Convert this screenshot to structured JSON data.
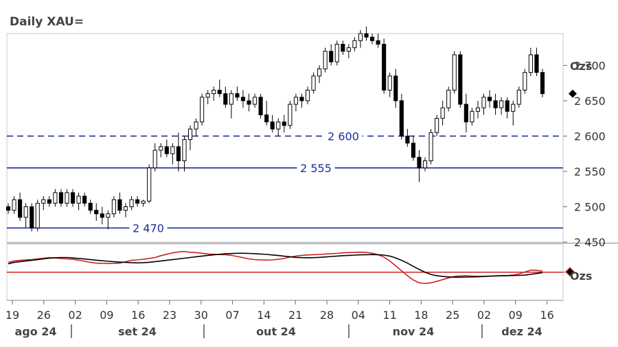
{
  "title": "Daily XAU=",
  "chart_data": {
    "type": "candlestick",
    "title": "Daily XAU=",
    "price_panel": {
      "unit_label": "Ozs",
      "ylim": [
        2450,
        2745
      ],
      "yticks": [
        "2 450",
        "2 500",
        "2 550",
        "2 600",
        "2 650",
        "2 700"
      ],
      "ytick_values": [
        2450,
        2500,
        2550,
        2600,
        2650,
        2700
      ],
      "last_price": 2660,
      "levels": [
        {
          "value": 2600,
          "label": "2 600",
          "style": "dashed",
          "color": "#1a2e9c"
        },
        {
          "value": 2555,
          "label": "2 555",
          "style": "solid",
          "color": "#1a2e9c"
        },
        {
          "value": 2470,
          "label": "2 470",
          "style": "solid",
          "color": "#1a2e9c"
        }
      ],
      "candles": [
        [
          2500,
          2505,
          2490,
          2495
        ],
        [
          2495,
          2515,
          2490,
          2510
        ],
        [
          2510,
          2520,
          2480,
          2485
        ],
        [
          2485,
          2505,
          2470,
          2500
        ],
        [
          2500,
          2505,
          2465,
          2470
        ],
        [
          2470,
          2510,
          2465,
          2505
        ],
        [
          2505,
          2515,
          2495,
          2510
        ],
        [
          2510,
          2515,
          2500,
          2505
        ],
        [
          2505,
          2525,
          2500,
          2520
        ],
        [
          2520,
          2525,
          2500,
          2505
        ],
        [
          2505,
          2525,
          2500,
          2520
        ],
        [
          2520,
          2525,
          2500,
          2505
        ],
        [
          2505,
          2520,
          2495,
          2515
        ],
        [
          2515,
          2520,
          2500,
          2505
        ],
        [
          2505,
          2510,
          2490,
          2495
        ],
        [
          2495,
          2505,
          2480,
          2490
        ],
        [
          2490,
          2500,
          2475,
          2485
        ],
        [
          2485,
          2495,
          2468,
          2490
        ],
        [
          2490,
          2515,
          2485,
          2510
        ],
        [
          2510,
          2520,
          2490,
          2495
        ],
        [
          2495,
          2505,
          2485,
          2500
        ],
        [
          2500,
          2515,
          2495,
          2510
        ],
        [
          2510,
          2515,
          2500,
          2505
        ],
        [
          2505,
          2510,
          2500,
          2508
        ],
        [
          2508,
          2560,
          2505,
          2555
        ],
        [
          2555,
          2590,
          2550,
          2580
        ],
        [
          2580,
          2590,
          2570,
          2585
        ],
        [
          2585,
          2595,
          2570,
          2575
        ],
        [
          2575,
          2590,
          2560,
          2585
        ],
        [
          2585,
          2605,
          2550,
          2565
        ],
        [
          2565,
          2600,
          2550,
          2595
        ],
        [
          2595,
          2615,
          2580,
          2610
        ],
        [
          2610,
          2625,
          2600,
          2620
        ],
        [
          2620,
          2660,
          2615,
          2655
        ],
        [
          2655,
          2665,
          2645,
          2660
        ],
        [
          2660,
          2670,
          2650,
          2665
        ],
        [
          2665,
          2680,
          2655,
          2660
        ],
        [
          2660,
          2670,
          2640,
          2645
        ],
        [
          2645,
          2665,
          2625,
          2660
        ],
        [
          2660,
          2670,
          2650,
          2655
        ],
        [
          2655,
          2665,
          2640,
          2650
        ],
        [
          2650,
          2660,
          2635,
          2645
        ],
        [
          2645,
          2660,
          2640,
          2655
        ],
        [
          2655,
          2660,
          2625,
          2630
        ],
        [
          2630,
          2650,
          2615,
          2620
        ],
        [
          2620,
          2630,
          2605,
          2610
        ],
        [
          2610,
          2625,
          2600,
          2620
        ],
        [
          2620,
          2630,
          2605,
          2615
        ],
        [
          2615,
          2650,
          2610,
          2645
        ],
        [
          2645,
          2660,
          2635,
          2655
        ],
        [
          2655,
          2660,
          2640,
          2650
        ],
        [
          2650,
          2670,
          2645,
          2665
        ],
        [
          2665,
          2690,
          2660,
          2685
        ],
        [
          2685,
          2700,
          2675,
          2695
        ],
        [
          2695,
          2725,
          2690,
          2720
        ],
        [
          2720,
          2730,
          2700,
          2705
        ],
        [
          2705,
          2735,
          2700,
          2730
        ],
        [
          2730,
          2735,
          2715,
          2720
        ],
        [
          2720,
          2730,
          2710,
          2725
        ],
        [
          2725,
          2740,
          2720,
          2735
        ],
        [
          2735,
          2750,
          2725,
          2745
        ],
        [
          2745,
          2755,
          2735,
          2740
        ],
        [
          2740,
          2745,
          2730,
          2735
        ],
        [
          2735,
          2745,
          2725,
          2730
        ],
        [
          2730,
          2738,
          2660,
          2665
        ],
        [
          2665,
          2690,
          2655,
          2685
        ],
        [
          2685,
          2695,
          2640,
          2650
        ],
        [
          2650,
          2660,
          2595,
          2600
        ],
        [
          2600,
          2610,
          2585,
          2590
        ],
        [
          2590,
          2600,
          2565,
          2570
        ],
        [
          2570,
          2580,
          2535,
          2555
        ],
        [
          2555,
          2570,
          2550,
          2565
        ],
        [
          2565,
          2610,
          2560,
          2605
        ],
        [
          2605,
          2630,
          2600,
          2625
        ],
        [
          2625,
          2650,
          2615,
          2640
        ],
        [
          2640,
          2670,
          2635,
          2665
        ],
        [
          2665,
          2720,
          2660,
          2715
        ],
        [
          2715,
          2720,
          2640,
          2645
        ],
        [
          2645,
          2660,
          2605,
          2620
        ],
        [
          2620,
          2640,
          2615,
          2635
        ],
        [
          2635,
          2650,
          2625,
          2640
        ],
        [
          2640,
          2660,
          2630,
          2655
        ],
        [
          2655,
          2665,
          2640,
          2650
        ],
        [
          2650,
          2660,
          2630,
          2640
        ],
        [
          2640,
          2655,
          2630,
          2650
        ],
        [
          2650,
          2655,
          2625,
          2635
        ],
        [
          2635,
          2650,
          2615,
          2645
        ],
        [
          2645,
          2670,
          2640,
          2665
        ],
        [
          2665,
          2695,
          2660,
          2690
        ],
        [
          2690,
          2725,
          2685,
          2715
        ],
        [
          2715,
          2725,
          2685,
          2690
        ],
        [
          2690,
          2695,
          2655,
          2660
        ]
      ]
    },
    "macd_panel": {
      "unit_label": "Ozs",
      "ylim": [
        -20,
        20
      ],
      "zero_line": 0,
      "macd_color": "#000000",
      "signal_color": "#d02020",
      "zero_color": "#d02020",
      "macd": [
        6,
        7,
        7.5,
        8,
        8.5,
        9,
        9.5,
        10,
        10.3,
        10.5,
        10.5,
        10.2,
        9.8,
        9.4,
        9,
        8.6,
        8.2,
        7.8,
        7.5,
        7.2,
        7,
        6.8,
        6.7,
        6.8,
        7.1,
        7.5,
        8,
        8.5,
        9,
        9.5,
        10,
        10.5,
        11,
        11.5,
        12,
        12.4,
        12.8,
        13.1,
        13.3,
        13.5,
        13.5,
        13.4,
        13.2,
        13,
        12.7,
        12.3,
        11.9,
        11.4,
        11,
        10.6,
        10.4,
        10.3,
        10.4,
        10.6,
        10.9,
        11.2,
        11.5,
        11.8,
        12,
        12.2,
        12.4,
        12.5,
        12.6,
        12.5,
        12.2,
        11.5,
        10.2,
        8.5,
        6.5,
        4.2,
        2,
        0,
        -1.5,
        -2.5,
        -3,
        -3.3,
        -3.5,
        -3.5,
        -3.4,
        -3.3,
        -3.2,
        -3,
        -2.8,
        -2.6,
        -2.5,
        -2.4,
        -2.3,
        -2.2,
        -2,
        -1.5,
        -0.9,
        -0.3
      ],
      "signal": [
        7,
        8,
        8.5,
        8.8,
        9,
        9.5,
        10,
        10.5,
        10.2,
        9.8,
        9.5,
        9.2,
        8.6,
        7.8,
        7,
        6.5,
        6.3,
        6.2,
        6.3,
        6.5,
        7.5,
        8.5,
        8.8,
        9.2,
        9.8,
        10.5,
        11.8,
        12.8,
        13.8,
        14.5,
        14.8,
        14.2,
        14,
        13.5,
        13,
        12.8,
        12.6,
        12.5,
        12,
        11.2,
        10.4,
        9.5,
        9,
        8.8,
        8.7,
        8.8,
        9.2,
        9.8,
        10.8,
        11.5,
        12,
        12.3,
        12.5,
        12.7,
        13,
        13.2,
        13.4,
        13.8,
        14,
        14.2,
        14.3,
        14.1,
        13.5,
        12.5,
        10.8,
        8,
        4.5,
        1,
        -2.5,
        -5.5,
        -7.5,
        -8,
        -7.5,
        -6.5,
        -5.2,
        -4,
        -3,
        -2.6,
        -2.5,
        -2.7,
        -2.9,
        -2.9,
        -2.8,
        -2.7,
        -2.5,
        -2.4,
        -2,
        -1.2,
        0.2,
        1.5,
        1.4,
        0.8
      ]
    },
    "x_ticks": [
      "19",
      "26",
      "02",
      "09",
      "16",
      "23",
      "30",
      "07",
      "14",
      "21",
      "28",
      "04",
      "11",
      "18",
      "25",
      "02",
      "09",
      "16"
    ],
    "x_months": [
      "ago 24",
      "set 24",
      "out 24",
      "nov 24",
      "dez 24"
    ]
  }
}
